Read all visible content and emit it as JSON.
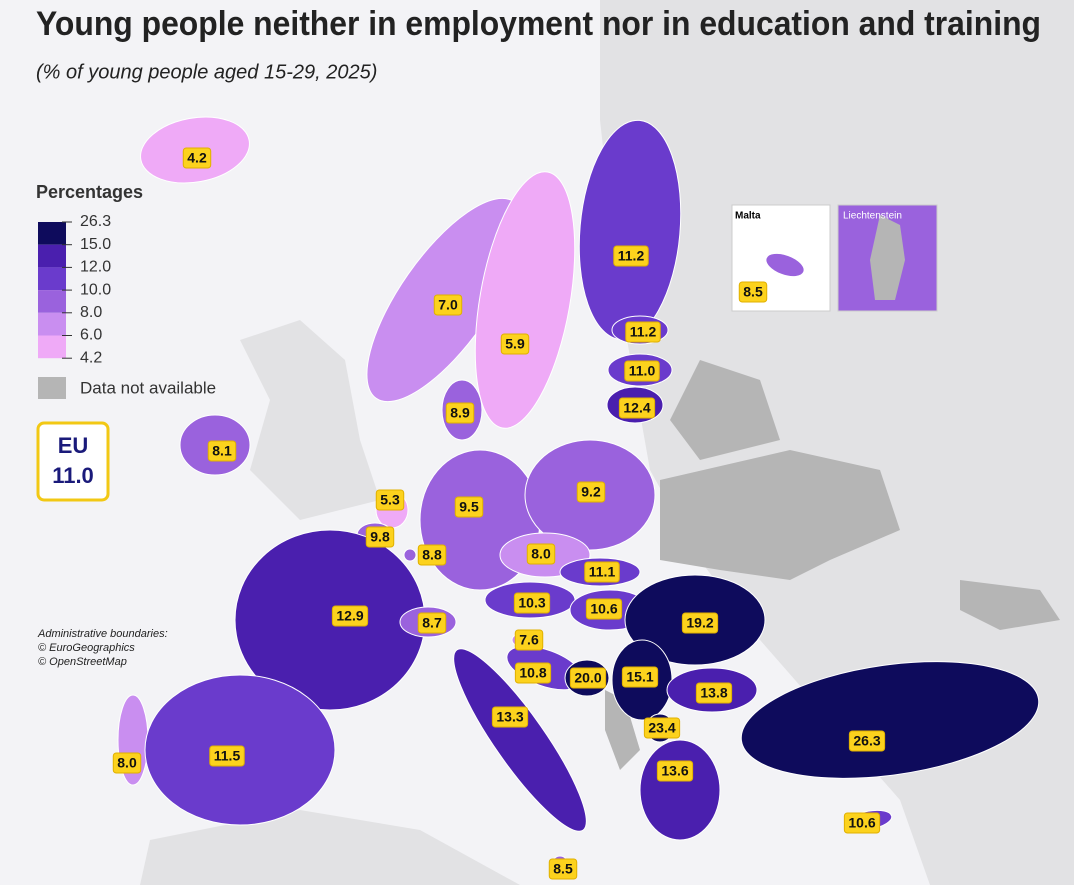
{
  "title": "Young people neither in employment nor in education and training",
  "subtitle": "(% of young people aged 15-29, 2025)",
  "legend": {
    "title": "Percentages",
    "breaks": [
      {
        "value": 26.3,
        "label": "26.3"
      },
      {
        "value": 15,
        "label": "15.0"
      },
      {
        "value": 12,
        "label": "12.0"
      },
      {
        "value": 10,
        "label": "10.0"
      },
      {
        "value": 8,
        "label": "8.0"
      },
      {
        "value": 6,
        "label": "6.0"
      },
      {
        "value": 4.2,
        "label": "4.2"
      }
    ],
    "colors": [
      "#0e0b5c",
      "#4a1fae",
      "#6a3bcc",
      "#9a62dd",
      "#c98ef0",
      "#efaaf7"
    ],
    "na_label": "Data not available",
    "na_color": "#b5b5b5"
  },
  "eu": {
    "label": "EU",
    "value": 11,
    "value_label": "11.0"
  },
  "insets": [
    "Malta",
    "Liechtenstein"
  ],
  "credits": [
    "Administrative boundaries:",
    "© EuroGeographics",
    "© OpenStreetMap"
  ],
  "regions": {
    "values": [
      4.2,
      7,
      5.9,
      11.2,
      11.2,
      11,
      12.4,
      8.9,
      8.1,
      5.3,
      9.5,
      9.2,
      9.8,
      8.8,
      8,
      11.1,
      12.9,
      10.3,
      10.6,
      8.7,
      19.2,
      7.6,
      10.8,
      20,
      15.1,
      13.8,
      13.3,
      23.4,
      26.3,
      8,
      11.5,
      13.6,
      10.6,
      8.5,
      8.5
    ],
    "value_labels": [
      "4.2",
      "7.0",
      "5.9",
      "11.2",
      "11.2",
      "11.0",
      "12.4",
      "8.9",
      "8.1",
      "5.3",
      "9.5",
      "9.2",
      "9.8",
      "8.8",
      "8.0",
      "11.1",
      "12.9",
      "10.3",
      "10.6",
      "8.7",
      "19.2",
      "7.6",
      "10.8",
      "20.0",
      "15.1",
      "13.8",
      "13.3",
      "23.4",
      "26.3",
      "8.0",
      "11.5",
      "13.6",
      "10.6",
      "8.5",
      "8.5"
    ]
  }
}
